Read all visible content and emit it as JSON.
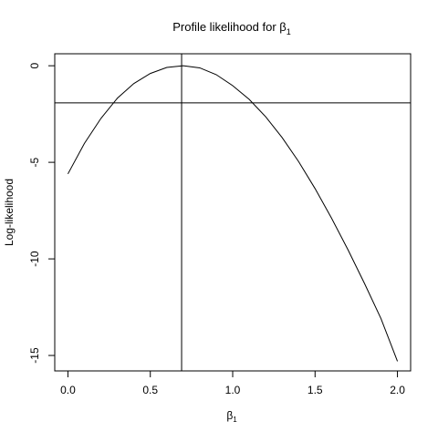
{
  "chart_data": {
    "type": "line",
    "title": {
      "text": "Profile likelihood for β",
      "subscript": "1"
    },
    "xlabel": {
      "text": "β",
      "subscript": "1"
    },
    "ylabel": "Log-likelihood",
    "xlim": [
      -0.08,
      2.08
    ],
    "ylim": [
      -15.8,
      0.62
    ],
    "xticks": [
      {
        "value": 0,
        "label": "0.0"
      },
      {
        "value": 0.5,
        "label": "0.5"
      },
      {
        "value": 1,
        "label": "1.0"
      },
      {
        "value": 1.5,
        "label": "1.5"
      },
      {
        "value": 2,
        "label": "2.0"
      }
    ],
    "yticks": [
      {
        "value": 0,
        "label": "0"
      },
      {
        "value": -5,
        "label": "-5"
      },
      {
        "value": -10,
        "label": "-10"
      },
      {
        "value": -15,
        "label": "-15"
      }
    ],
    "series": [
      {
        "color": "#000000",
        "x": [
          0.0,
          0.1,
          0.2,
          0.3,
          0.4,
          0.5,
          0.6,
          0.7,
          0.8,
          0.9,
          1.0,
          1.1,
          1.2,
          1.3,
          1.4,
          1.5,
          1.6,
          1.7,
          1.8,
          1.9,
          2.0
        ],
        "y": [
          -5.6,
          -4.02,
          -2.73,
          -1.68,
          -0.92,
          -0.4,
          -0.09,
          0.0,
          -0.11,
          -0.46,
          -1.03,
          -1.74,
          -2.64,
          -3.72,
          -4.96,
          -6.36,
          -7.89,
          -9.53,
          -11.27,
          -13.09,
          -15.3
        ]
      }
    ],
    "reference_lines": {
      "horizontal_y": -1.92,
      "vertical_x": 0.69
    },
    "grid": false,
    "legend": "none"
  }
}
